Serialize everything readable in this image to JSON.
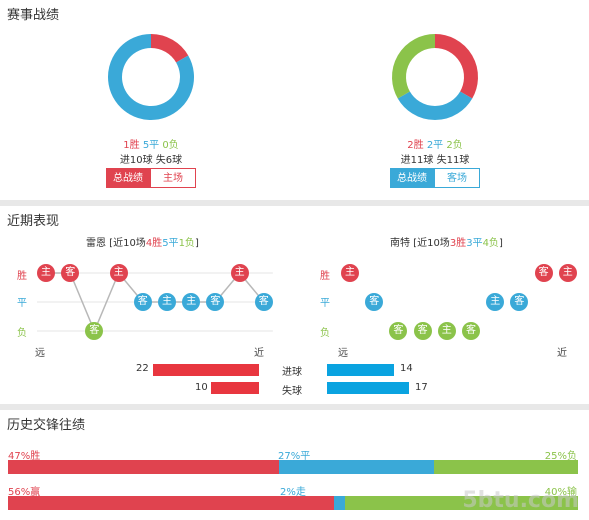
{
  "section_titles": {
    "record": "赛事战绩",
    "recent": "近期表现",
    "h2h": "历史交锋往绩"
  },
  "colors": {
    "red": "#e0434f",
    "blue": "#3aa9d8",
    "green": "#8bc34a",
    "bar_red": "#e8363f",
    "bar_blue": "#0aa3e0"
  },
  "left_team": {
    "pie": {
      "win": 1,
      "draw": 5,
      "loss": 0
    },
    "wins": "1胜",
    "draws": "5平",
    "losses": "0负",
    "goals_for": "进10球",
    "goals_against": "失6球",
    "tab_total": "总战绩",
    "tab_venue": "主场"
  },
  "right_team": {
    "pie": {
      "win": 2,
      "draw": 2,
      "loss": 2
    },
    "wins": "2胜",
    "draws": "2平",
    "losses": "2负",
    "goals_for": "进11球",
    "goals_against": "失11球",
    "tab_total": "总战绩",
    "tab_venue": "客场"
  },
  "recent": {
    "row_labels": {
      "win": "胜",
      "draw": "平",
      "loss": "负"
    },
    "axis": {
      "far": "远",
      "near": "近"
    },
    "left": {
      "team": "雷恩",
      "prefix": " [近10场",
      "w": "4胜",
      "d": "5平",
      "l": "1负",
      "suffix": "]",
      "matches": [
        {
          "result": "win",
          "venue": "主"
        },
        {
          "result": "win",
          "venue": "客"
        },
        {
          "result": "loss",
          "venue": "客"
        },
        {
          "result": "win",
          "venue": "主"
        },
        {
          "result": "draw",
          "venue": "客"
        },
        {
          "result": "draw",
          "venue": "主"
        },
        {
          "result": "draw",
          "venue": "主"
        },
        {
          "result": "draw",
          "venue": "客"
        },
        {
          "result": "win",
          "venue": "主"
        },
        {
          "result": "draw",
          "venue": "客"
        }
      ]
    },
    "right": {
      "team": "南特",
      "prefix": " [近10场",
      "w": "3胜",
      "d": "3平",
      "l": "4负",
      "suffix": "]",
      "matches": [
        {
          "result": "win",
          "venue": "主"
        },
        {
          "result": "draw",
          "venue": "客"
        },
        {
          "result": "loss",
          "venue": "客"
        },
        {
          "result": "loss",
          "venue": "客"
        },
        {
          "result": "loss",
          "venue": "主"
        },
        {
          "result": "loss",
          "venue": "客"
        },
        {
          "result": "draw",
          "venue": "主"
        },
        {
          "result": "draw",
          "venue": "客"
        },
        {
          "result": "win",
          "venue": "客"
        },
        {
          "result": "win",
          "venue": "主"
        }
      ]
    },
    "goals": {
      "scored_label": "进球",
      "conceded_label": "失球",
      "left_scored": 22,
      "left_conceded": 10,
      "right_scored": 14,
      "right_conceded": 17,
      "scale_max": 22
    }
  },
  "h2h": {
    "row1": {
      "win": 47,
      "draw": 27,
      "loss": 25,
      "win_label": "47%胜",
      "draw_label": "27%平",
      "loss_label": "25%负"
    },
    "row2": {
      "win": 56,
      "draw": 2,
      "loss": 40,
      "win_label": "56%赢",
      "draw_label": "2%走",
      "loss_label": "40%输"
    }
  },
  "watermark": "5btu.com"
}
